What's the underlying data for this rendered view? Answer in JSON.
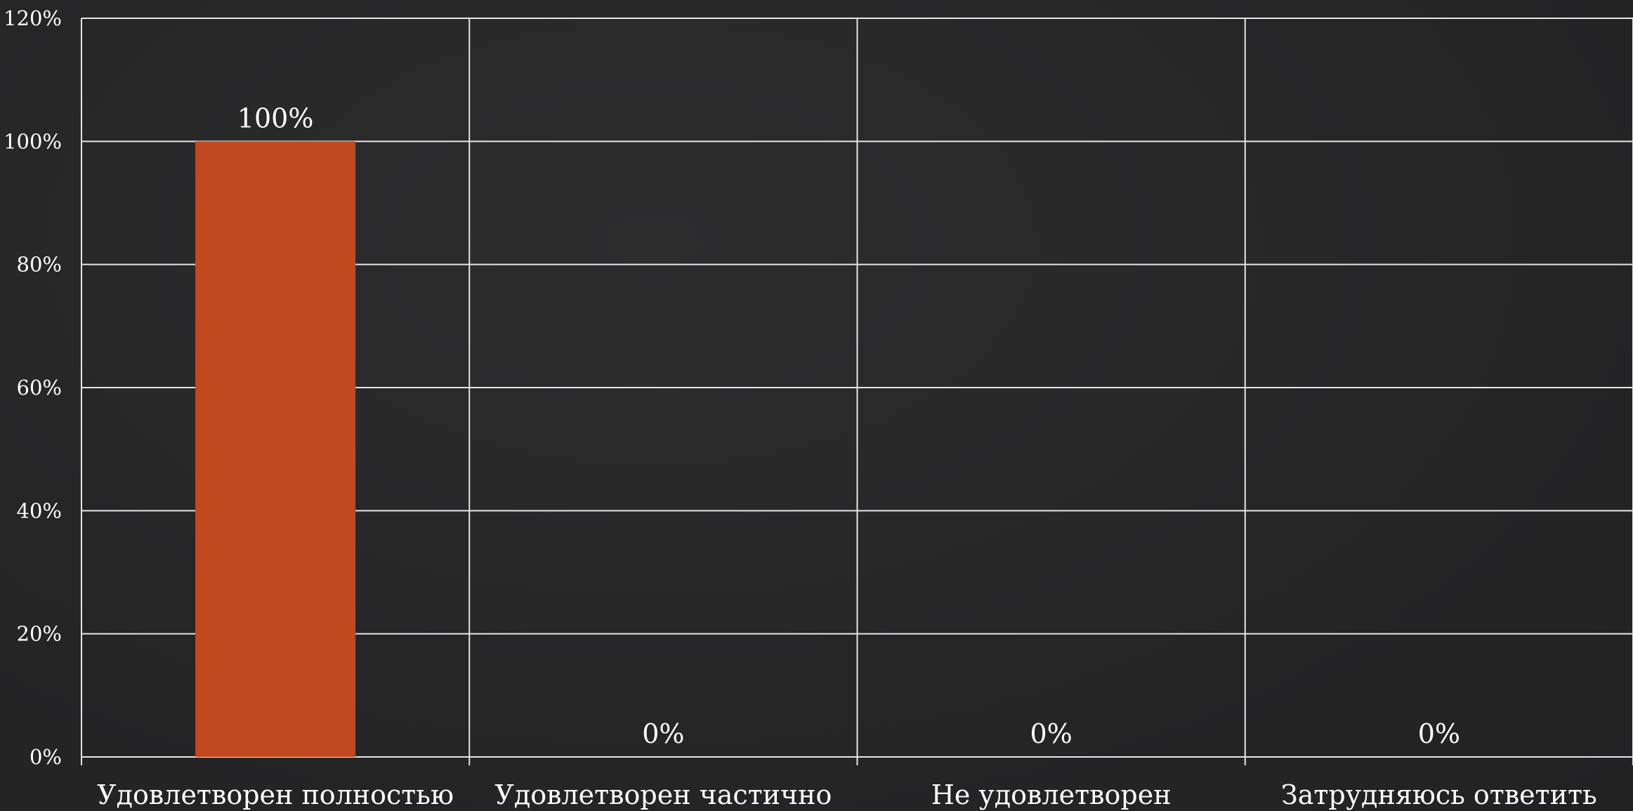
{
  "chart_data": {
    "type": "bar",
    "categories": [
      "Удовлетворен полностью",
      "Удовлетворен частично",
      "Не удовлетворен",
      "Затрудняюсь ответить"
    ],
    "values": [
      100,
      0,
      0,
      0
    ],
    "data_labels": [
      "100%",
      "0%",
      "0%",
      "0%"
    ],
    "ylim": [
      0,
      120
    ],
    "yticks": [
      0,
      20,
      40,
      60,
      80,
      100,
      120
    ],
    "ytick_labels": [
      "0%",
      "20%",
      "40%",
      "60%",
      "80%",
      "100%",
      "120%"
    ],
    "grid": true,
    "bar_color": "#c0491f",
    "title": "",
    "xlabel": "",
    "ylabel": ""
  }
}
